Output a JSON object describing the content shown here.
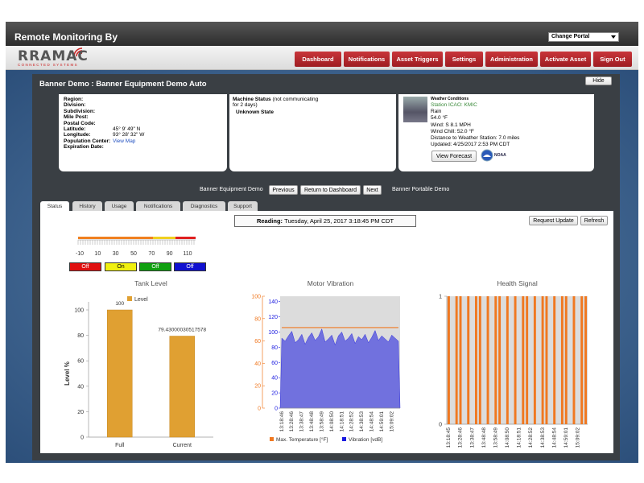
{
  "header": {
    "title": "Remote Monitoring By",
    "portal_select": "Change Portal"
  },
  "logo": {
    "name": "RRAMAC",
    "tagline": "CONNECTED SYSTEMS"
  },
  "nav": [
    "Dashboard",
    "Notifications",
    "Asset Triggers",
    "Settings",
    "Administration",
    "Activate Asset",
    "Sign Out"
  ],
  "panel": {
    "title": "Banner Demo : Banner Equipment Demo Auto",
    "hide": "Hide"
  },
  "location": {
    "fields": [
      {
        "label": "Region:"
      },
      {
        "label": "Division:"
      },
      {
        "label": "Subdivision:"
      },
      {
        "label": "Mile Post:"
      },
      {
        "label": "Postal Code:"
      },
      {
        "label": "Latitude:",
        "value": "45° 9' 49\" N"
      },
      {
        "label": "Longitude:",
        "value": "93° 28' 32\" W"
      },
      {
        "label": "Population Center:",
        "value": "View Map"
      },
      {
        "label": "Expiration Date:"
      }
    ]
  },
  "machine_status": {
    "label": "Machine Status",
    "note": "(not communicating for 2 days)",
    "state": "Unknown State"
  },
  "weather": {
    "title": "Weather Conditions",
    "station": "Station ICAO: KMIC",
    "condition": "Rain",
    "temperature": "54.0 °F",
    "wind": "Wind: S 8.1 MPH",
    "wind_chill": "Wind Chill: 52.0 °F",
    "distance": "Distance to Weather Station: 7.0 miles",
    "updated": "Updated: 4/25/2017 2:53 PM CDT",
    "forecast_button": "View Forecast",
    "noaa": "NOAA"
  },
  "asset_nav": {
    "previous_asset": "Banner Equipment Demo",
    "previous": "Previous",
    "dashboard": "Return to Dashboard",
    "next": "Next",
    "next_asset": "Banner Portable Demo"
  },
  "tabs": [
    "Status",
    "History",
    "Usage",
    "Notifications",
    "Diagnostics",
    "Support"
  ],
  "reading": {
    "label": "Reading:",
    "value": "Tuesday, April 25, 2017 3:18:45 PM CDT"
  },
  "buttons": {
    "request_update": "Request Update",
    "refresh": "Refresh"
  },
  "gauge": {
    "ticks": [
      -10,
      10,
      30,
      50,
      70,
      90,
      110
    ],
    "states": [
      "Off",
      "On",
      "Off",
      "Off"
    ]
  },
  "chart_data": [
    {
      "type": "bar",
      "title": "Tank Level",
      "y_label": "Level %",
      "categories": [
        "Full",
        "Current"
      ],
      "series": [
        {
          "name": "Level",
          "color": "#e0a032",
          "values": [
            100,
            79.43000030517578
          ]
        }
      ],
      "ylim": [
        0,
        100
      ],
      "yticks": [
        0,
        20,
        40,
        60,
        80,
        100
      ],
      "data_labels": true
    },
    {
      "type": "area",
      "title": "Motor Vibration",
      "categories": [
        "13:18:46",
        null,
        null,
        "13:28:46",
        null,
        null,
        "13:38:47",
        null,
        null,
        "13:48:48",
        null,
        null,
        "13:58:49",
        null,
        null,
        "14:08:50",
        null,
        null,
        "14:18:51",
        null,
        null,
        "14:28:52",
        null,
        null,
        "14:38:53",
        null,
        null,
        "14:48:54",
        null,
        null,
        "14:59:01",
        null,
        null,
        "15:09:02",
        null,
        null
      ],
      "series": [
        {
          "name": "Max. Temperature [°F]",
          "color": "#f07820",
          "type": "line",
          "axis": "y",
          "values": [
            72,
            72,
            72,
            72,
            72,
            72,
            72,
            72,
            72,
            72,
            72,
            72,
            72,
            72,
            72,
            72,
            72,
            72,
            72,
            72,
            72,
            72,
            72,
            72,
            72,
            72,
            72,
            72,
            72,
            72,
            72,
            72,
            72,
            72,
            72,
            72
          ]
        },
        {
          "name": "Vibration [vdB]",
          "color": "#1a1ae0",
          "type": "area",
          "axis": "y2",
          "values": [
            92,
            88,
            95,
            101,
            86,
            90,
            97,
            84,
            93,
            99,
            89,
            94,
            104,
            87,
            91,
            96,
            83,
            95,
            100,
            88,
            92,
            98,
            85,
            94,
            90,
            97,
            86,
            93,
            102,
            89,
            95,
            91,
            87,
            96,
            92,
            88
          ]
        }
      ],
      "ylim": [
        0,
        100
      ],
      "yticks": [
        0,
        20,
        40,
        60,
        80,
        100
      ],
      "y2lim": [
        0,
        147
      ],
      "y2ticks": [
        0,
        20,
        40,
        60,
        80,
        100,
        120,
        140
      ]
    },
    {
      "type": "bar",
      "title": "Health Signal",
      "categories": [
        "13:18:45",
        null,
        null,
        "13:28:46",
        null,
        null,
        "13:38:47",
        null,
        null,
        "13:48:48",
        null,
        null,
        "13:58:49",
        null,
        null,
        "14:08:50",
        null,
        null,
        "14:18:51",
        null,
        null,
        "14:28:52",
        null,
        null,
        "14:38:53",
        null,
        null,
        "14:48:54",
        null,
        null,
        "14:59:01",
        null,
        null,
        "15:09:02",
        null,
        null
      ],
      "color": "#f07820",
      "values": [
        1,
        0,
        1,
        1,
        0,
        1,
        0,
        1,
        1,
        0,
        1,
        0,
        1,
        1,
        0,
        1,
        0,
        1,
        0,
        1,
        1,
        0,
        1,
        0,
        1,
        1,
        0,
        1,
        0,
        1,
        1,
        0,
        1,
        0,
        1,
        1
      ],
      "ylim": [
        0,
        1
      ],
      "yticks": [
        0,
        1
      ]
    }
  ]
}
